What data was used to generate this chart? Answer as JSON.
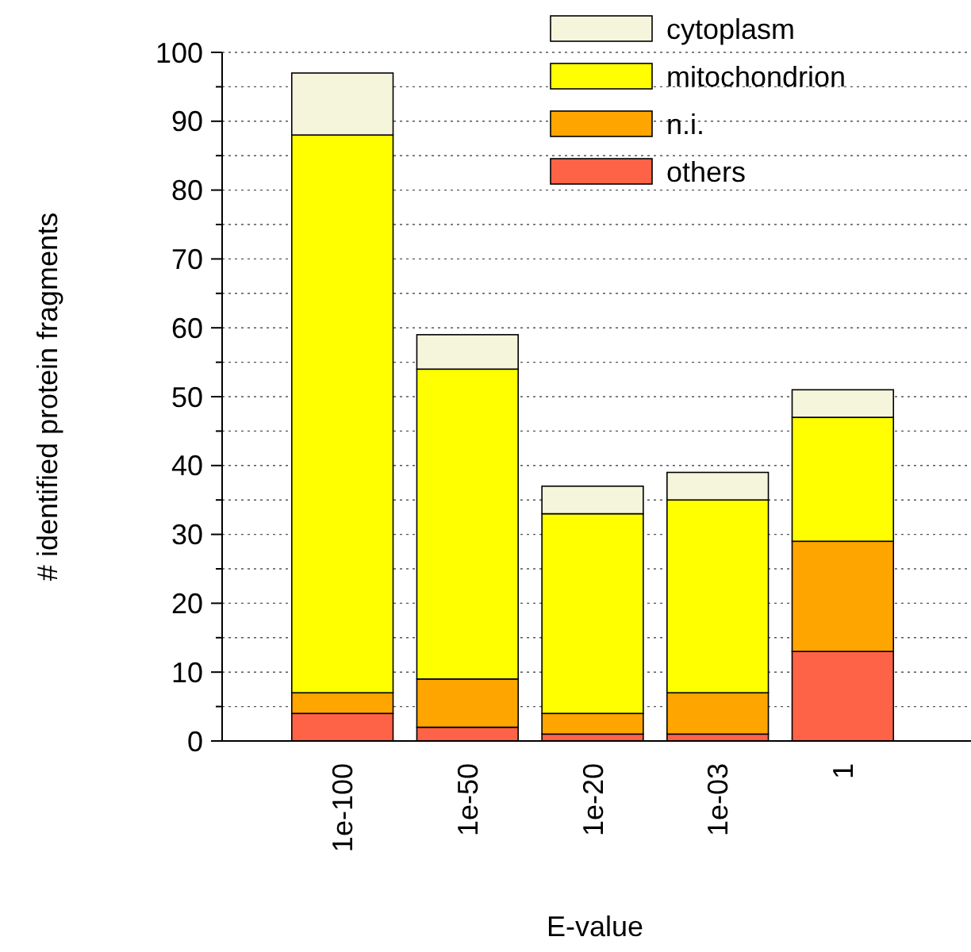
{
  "chart_data": {
    "type": "bar",
    "stacked": true,
    "xlabel": "E-value",
    "ylabel": "# identified protein fragments",
    "categories": [
      "1e-100",
      "1e-50",
      "1e-20",
      "1e-03",
      "1"
    ],
    "series": [
      {
        "name": "others",
        "color": "#ff6347",
        "values": [
          4,
          2,
          1,
          1,
          13
        ]
      },
      {
        "name": "n.i.",
        "color": "#ffa500",
        "values": [
          3,
          7,
          3,
          6,
          16
        ]
      },
      {
        "name": "mitochondrion",
        "color": "#ffff00",
        "values": [
          81,
          45,
          29,
          28,
          18
        ]
      },
      {
        "name": "cytoplasm",
        "color": "#f5f5dc",
        "values": [
          9,
          5,
          4,
          4,
          4
        ]
      }
    ],
    "ylim": [
      0,
      100
    ],
    "yticks": [
      0,
      {
        "value": 5,
        "label": null
      },
      10,
      {
        "value": 15,
        "label": null
      },
      20,
      {
        "value": 25,
        "label": null
      },
      30,
      {
        "value": 35,
        "label": null
      },
      40,
      {
        "value": 45,
        "label": null
      },
      50,
      {
        "value": 55,
        "label": null
      },
      60,
      {
        "value": 65,
        "label": null
      },
      70,
      {
        "value": 75,
        "label": null
      },
      80,
      {
        "value": 85,
        "label": null
      },
      90,
      {
        "value": 95,
        "label": null
      },
      100
    ],
    "grid": "y",
    "legend": "top right"
  }
}
